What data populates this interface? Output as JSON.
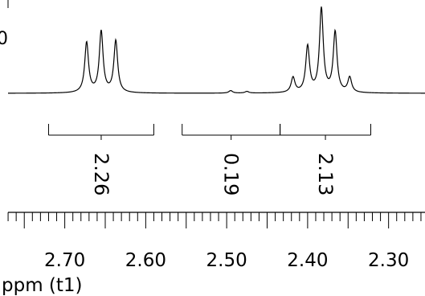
{
  "chart_data": {
    "type": "line",
    "x_unit_label": "ppm (t1)",
    "x_range_ppm": [
      2.78,
      2.255
    ],
    "x_tick_labels": [
      {
        "ppm": 2.7,
        "label": "2.70"
      },
      {
        "ppm": 2.6,
        "label": "2.60"
      },
      {
        "ppm": 2.5,
        "label": "2.50"
      },
      {
        "ppm": 2.4,
        "label": "2.40"
      },
      {
        "ppm": 2.3,
        "label": "2.30"
      }
    ],
    "left_edge_label": "0",
    "integrals": [
      {
        "from_ppm": 2.72,
        "to_ppm": 2.59,
        "value_label": "2.26"
      },
      {
        "from_ppm": 2.555,
        "to_ppm": 2.434,
        "value_label": "0.19"
      },
      {
        "from_ppm": 2.434,
        "to_ppm": 2.322,
        "value_label": "2.13"
      }
    ],
    "peaks": [
      {
        "ppm": 2.673,
        "height": 0.6
      },
      {
        "ppm": 2.655,
        "height": 0.73
      },
      {
        "ppm": 2.637,
        "height": 0.62
      },
      {
        "ppm": 2.495,
        "height": 0.03
      },
      {
        "ppm": 2.475,
        "height": 0.02
      },
      {
        "ppm": 2.418,
        "height": 0.18
      },
      {
        "ppm": 2.4,
        "height": 0.55
      },
      {
        "ppm": 2.383,
        "height": 1.0
      },
      {
        "ppm": 2.366,
        "height": 0.72
      },
      {
        "ppm": 2.348,
        "height": 0.18
      }
    ],
    "line_color": "#000000"
  }
}
